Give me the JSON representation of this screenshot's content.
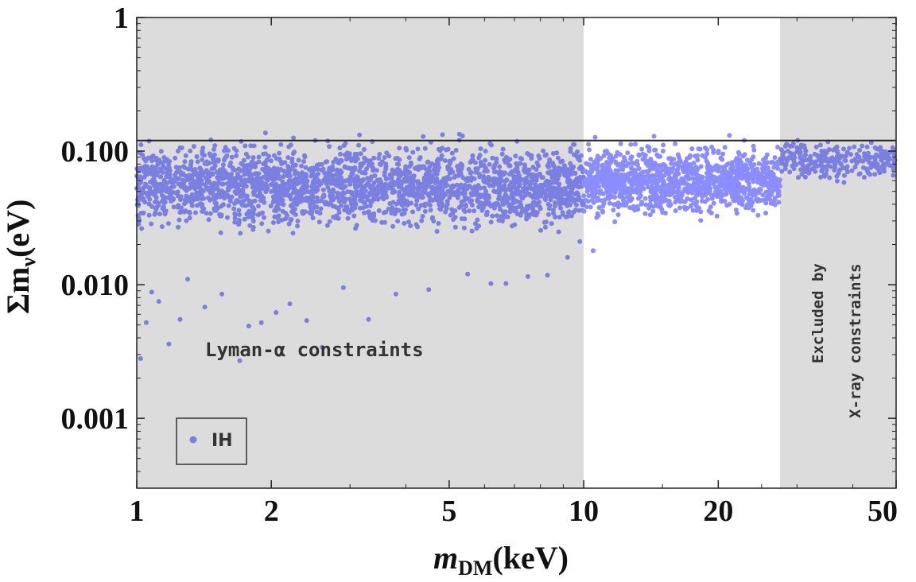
{
  "chart_data": {
    "type": "scatter",
    "title": "",
    "xlabel": {
      "main": "m",
      "sub": "DM",
      "unit": "(keV)"
    },
    "ylabel": {
      "main": "Σm",
      "sub": "ν",
      "unit": "(eV)"
    },
    "x_scale": "log",
    "y_scale": "log",
    "xlim": [
      1,
      50
    ],
    "ylim": [
      0.0003,
      1
    ],
    "x_ticks": [
      {
        "value": 1,
        "label": "1"
      },
      {
        "value": 2,
        "label": "2"
      },
      {
        "value": 5,
        "label": "5"
      },
      {
        "value": 10,
        "label": "10"
      },
      {
        "value": 20,
        "label": "20"
      },
      {
        "value": 50,
        "label": "50"
      }
    ],
    "y_ticks": [
      {
        "value": 0.001,
        "label": "0.001"
      },
      {
        "value": 0.01,
        "label": "0.010"
      },
      {
        "value": 0.1,
        "label": "0.100"
      },
      {
        "value": 1,
        "label": "1"
      }
    ],
    "horizontal_line": {
      "y": 0.12,
      "color": "#222222"
    },
    "shaded_regions": [
      {
        "x_from": 1,
        "x_to": 10,
        "color": "#dcdcdc"
      },
      {
        "x_from": 27.5,
        "x_to": 50,
        "color": "#dcdcdc"
      }
    ],
    "annotations": {
      "lyman": "Lyman-α constraints",
      "xray_line1": "Excluded by",
      "xray_line2": "X-ray constraints"
    },
    "legend": {
      "position": "bottom-left",
      "entries": [
        {
          "label": "IH",
          "color": "#7b7fe0"
        }
      ]
    },
    "series": [
      {
        "name": "IH",
        "color_shaded": "#7b7fe0",
        "color_clear": "#8a8cff",
        "points": [
          [
            1.02,
            0.0028
          ],
          [
            1.05,
            0.0052
          ],
          [
            1.08,
            0.0088
          ],
          [
            1.12,
            0.0075
          ],
          [
            1.18,
            0.0036
          ],
          [
            1.25,
            0.0055
          ],
          [
            1.3,
            0.011
          ],
          [
            1.42,
            0.0068
          ],
          [
            1.55,
            0.0085
          ],
          [
            1.7,
            0.0027
          ],
          [
            1.78,
            0.0049
          ],
          [
            1.9,
            0.0052
          ],
          [
            2.05,
            0.0062
          ],
          [
            2.2,
            0.0072
          ],
          [
            2.4,
            0.0054
          ],
          [
            2.6,
            0.0034
          ],
          [
            2.9,
            0.0095
          ],
          [
            3.3,
            0.0055
          ],
          [
            3.8,
            0.0085
          ],
          [
            4.5,
            0.0092
          ],
          [
            5.5,
            0.012
          ],
          [
            6.2,
            0.0102
          ],
          [
            6.7,
            0.0102
          ],
          [
            7.5,
            0.0115
          ],
          [
            8.3,
            0.0118
          ],
          [
            9.2,
            0.016
          ],
          [
            9.8,
            0.021
          ],
          [
            10.5,
            0.018
          ]
        ],
        "band": [
          {
            "x_from": 1,
            "x_to": 10,
            "y_low": 0.012,
            "y_mid": 0.055,
            "y_high": 0.16,
            "count": 2400,
            "color": "shaded"
          },
          {
            "x_from": 10,
            "x_to": 27.5,
            "y_low": 0.02,
            "y_mid": 0.06,
            "y_high": 0.17,
            "count": 1200,
            "color": "clear"
          },
          {
            "x_from": 27.5,
            "x_to": 50,
            "y_low": 0.04,
            "y_mid": 0.085,
            "y_high": 0.14,
            "count": 260,
            "color": "shaded"
          }
        ]
      }
    ]
  }
}
